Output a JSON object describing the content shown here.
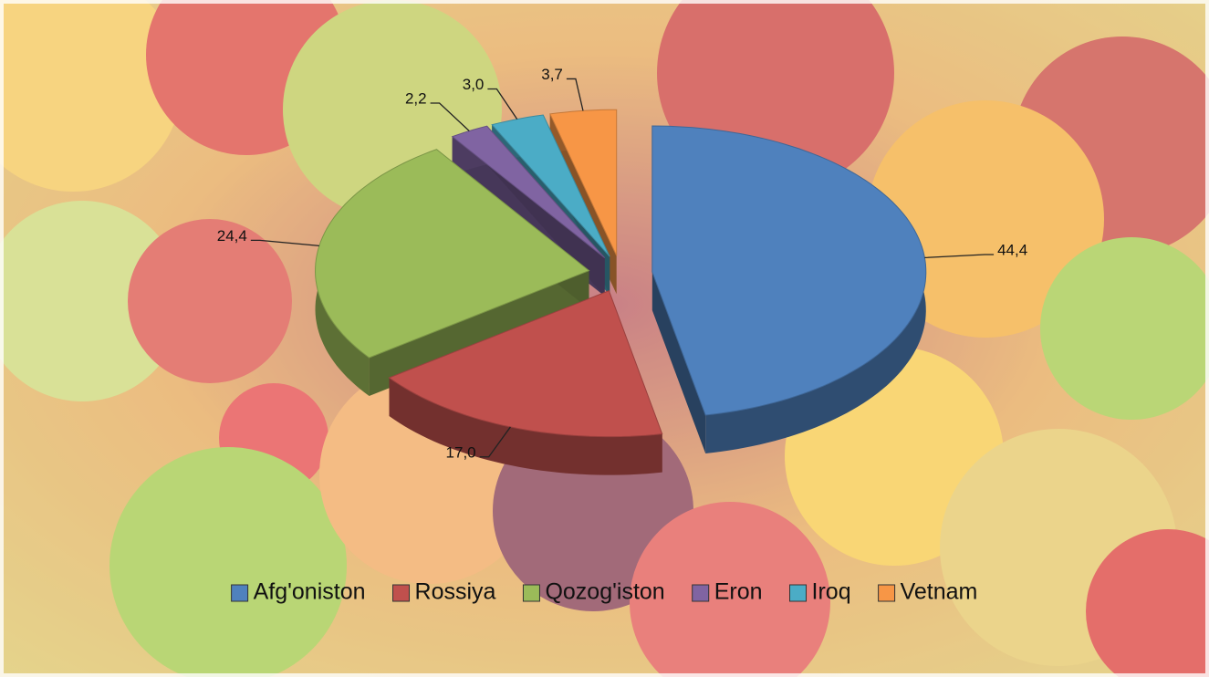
{
  "chart_data": {
    "type": "pie3d",
    "categories": [
      "Afg'oniston",
      "Rossiya",
      "Qozog'iston",
      "Eron",
      "Iroq",
      "Vetnam"
    ],
    "values": [
      44.4,
      17.0,
      24.4,
      2.2,
      3.0,
      3.7
    ],
    "value_labels": [
      "44,4",
      "17,0",
      "24,4",
      "2,2",
      "3,0",
      "3,7"
    ],
    "colors": [
      "#4f81bd",
      "#c0504d",
      "#9bbb59",
      "#8064a2",
      "#4bacc6",
      "#f79646"
    ],
    "legend": "bottom"
  }
}
